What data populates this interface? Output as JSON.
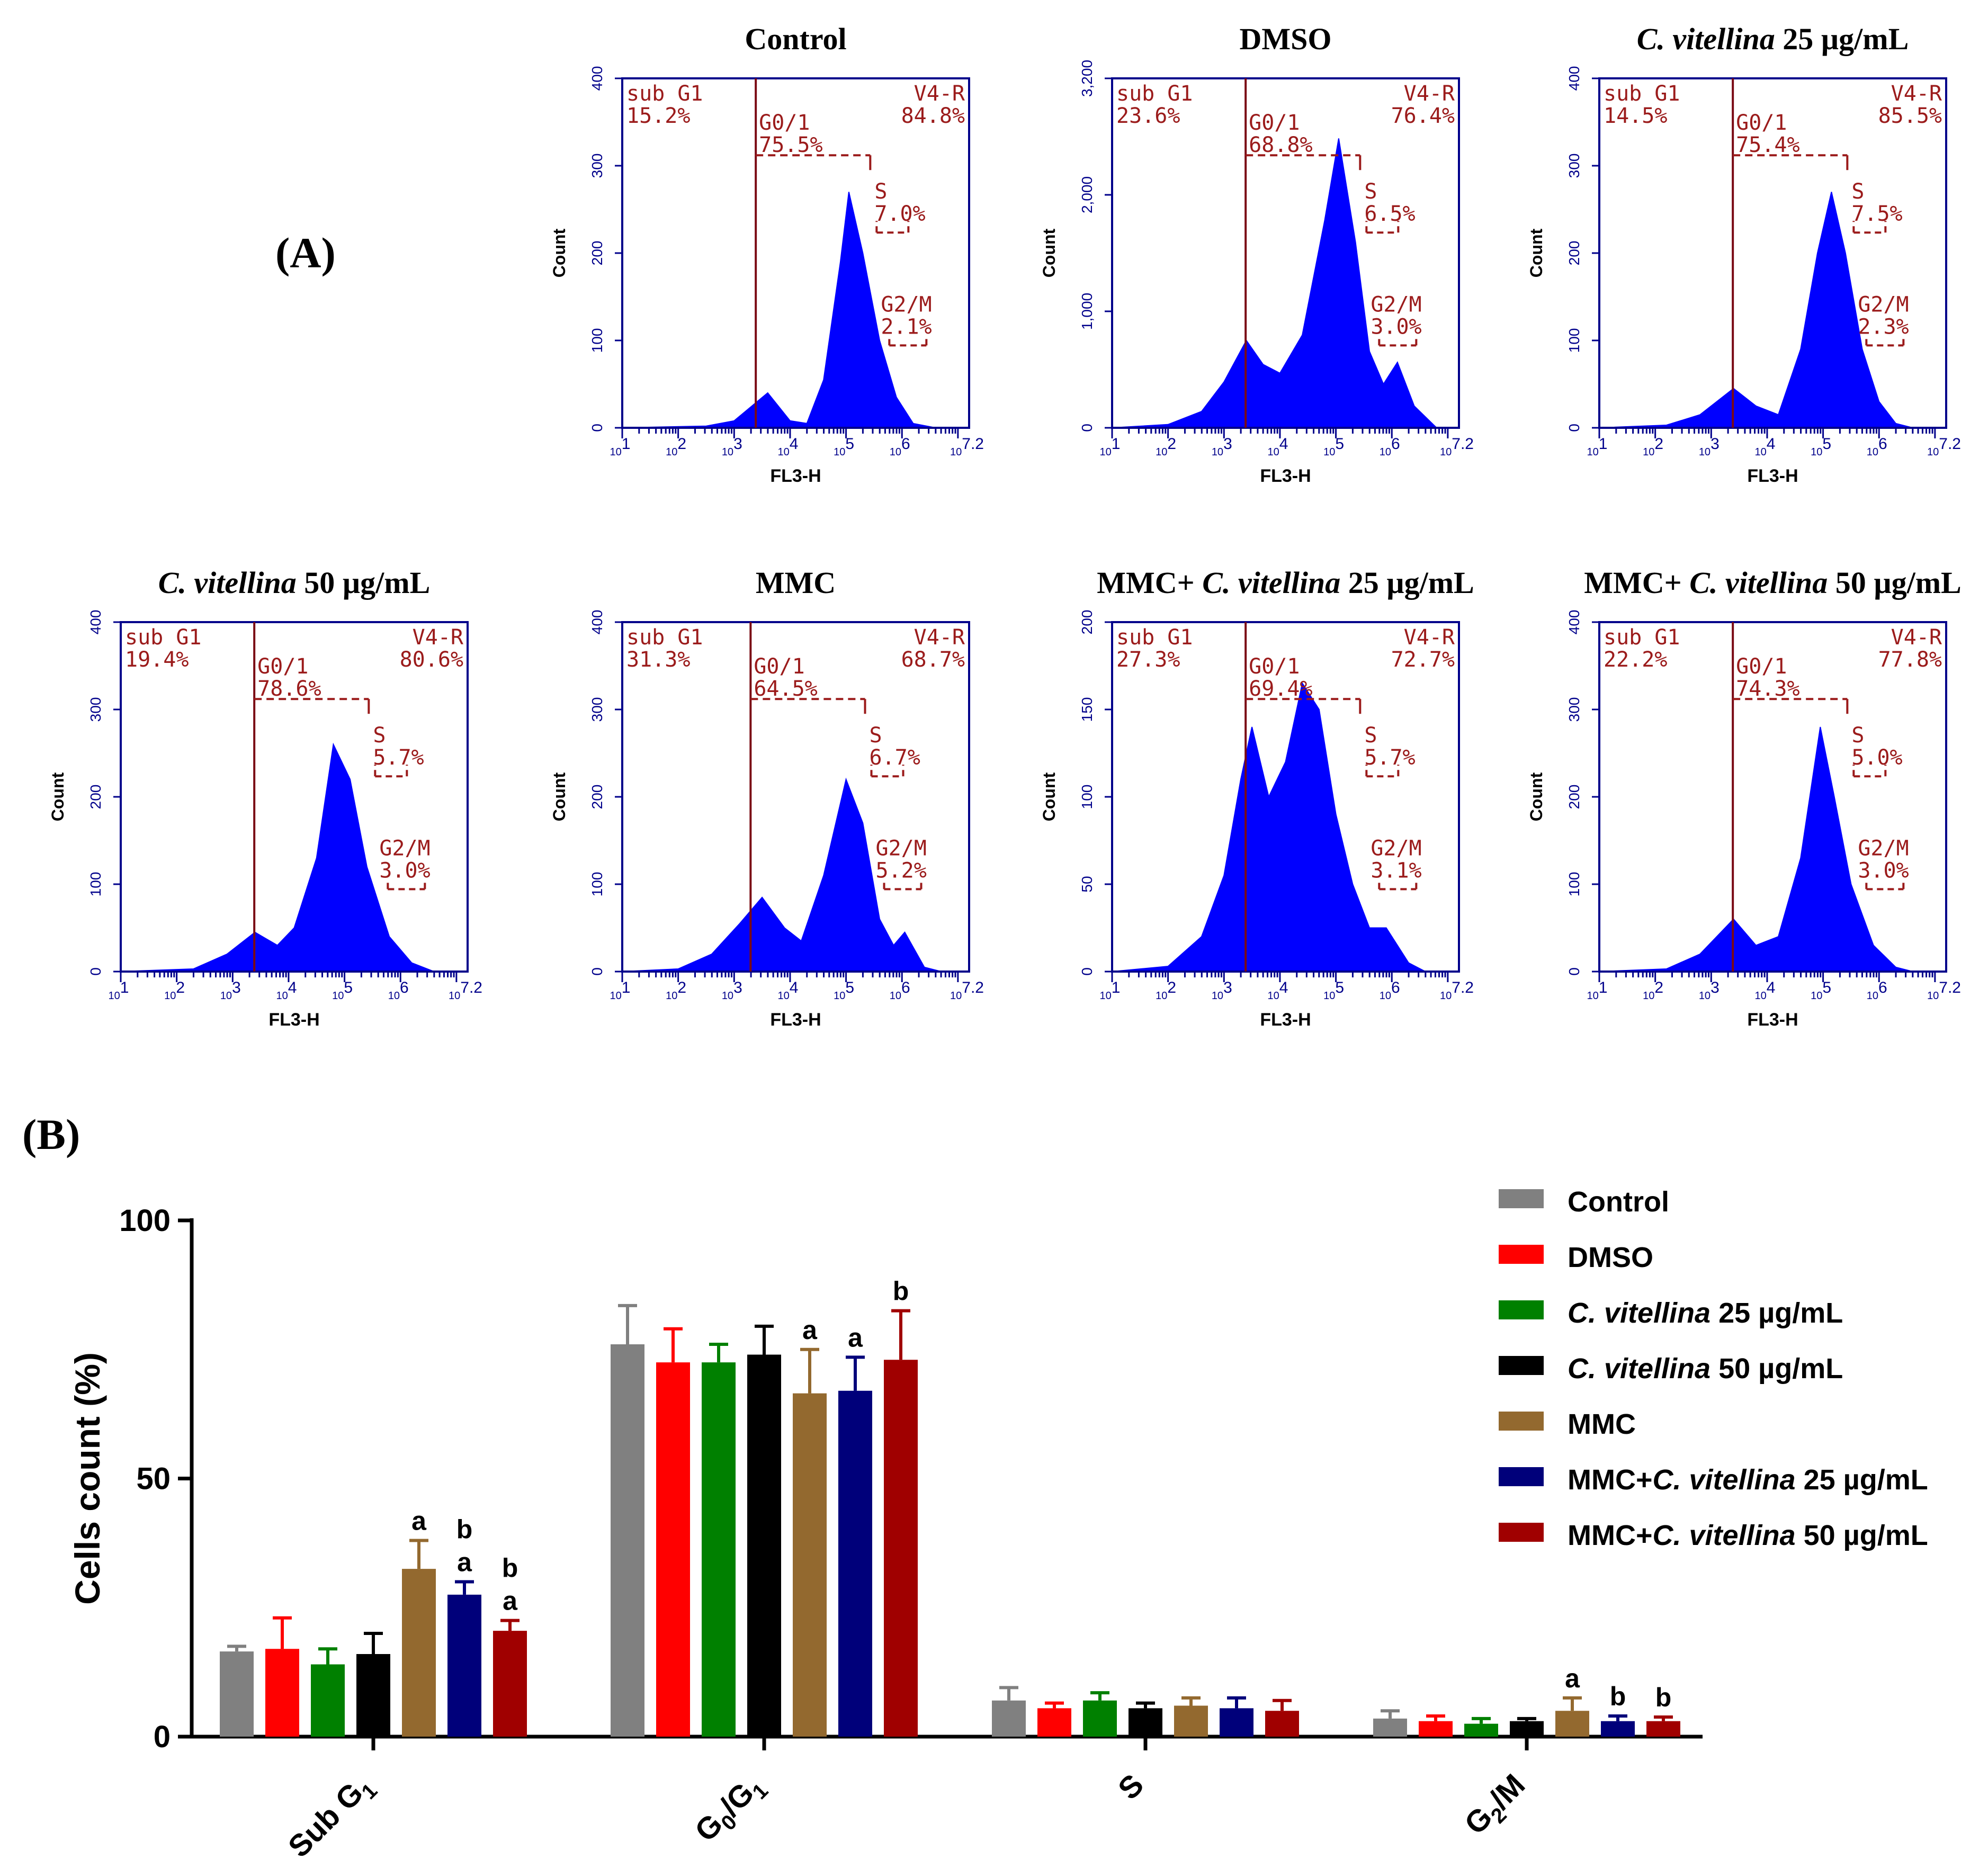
{
  "panels": {
    "a": "(A)",
    "b": "(B)"
  },
  "chart_data": [
    {
      "type": "histogram",
      "title": "Control",
      "ymax": 400,
      "yticks": [
        "0",
        "100",
        "200",
        "300",
        "400"
      ],
      "xlabel": "FL3-H",
      "ylabel": "Count",
      "xticks": [
        "10^1",
        "10^2",
        "10^3",
        "10^4",
        "10^5",
        "10^6",
        "10^7.2"
      ],
      "gates": {
        "sub_g1": {
          "label": "sub G1",
          "value": "15.2%"
        },
        "v4r": {
          "label": "V4-R",
          "value": "84.8%"
        },
        "g01": {
          "label": "G0/1",
          "value": "75.5%"
        },
        "s": {
          "label": "S",
          "value": "7.0%"
        },
        "g2m": {
          "label": "G2/M",
          "value": "2.1%"
        }
      },
      "histogram": [
        [
          1,
          0
        ],
        [
          2.5,
          2
        ],
        [
          3,
          8
        ],
        [
          3.6,
          40
        ],
        [
          4,
          8
        ],
        [
          4.3,
          5
        ],
        [
          4.6,
          55
        ],
        [
          4.9,
          190
        ],
        [
          5.05,
          270
        ],
        [
          5.3,
          200
        ],
        [
          5.6,
          100
        ],
        [
          5.9,
          35
        ],
        [
          6.2,
          5
        ],
        [
          6.6,
          0
        ]
      ]
    },
    {
      "type": "histogram",
      "title": "DMSO",
      "ymax": 3200,
      "yticks": [
        "0",
        "1,000",
        "2,000",
        "3,200"
      ],
      "xlabel": "FL3-H",
      "ylabel": "Count",
      "xticks": [
        "10^1",
        "10^2",
        "10^3",
        "10^4",
        "10^5",
        "10^6",
        "10^7.2"
      ],
      "gates": {
        "sub_g1": {
          "label": "sub G1",
          "value": "23.6%"
        },
        "v4r": {
          "label": "V4-R",
          "value": "76.4%"
        },
        "g01": {
          "label": "G0/1",
          "value": "68.8%"
        },
        "s": {
          "label": "S",
          "value": "6.5%"
        },
        "g2m": {
          "label": "G2/M",
          "value": "3.0%"
        }
      },
      "histogram": [
        [
          1,
          0
        ],
        [
          2,
          30
        ],
        [
          2.6,
          150
        ],
        [
          3,
          420
        ],
        [
          3.4,
          800
        ],
        [
          3.7,
          580
        ],
        [
          4,
          500
        ],
        [
          4.4,
          850
        ],
        [
          4.8,
          1900
        ],
        [
          5.05,
          2650
        ],
        [
          5.35,
          1700
        ],
        [
          5.6,
          700
        ],
        [
          5.85,
          400
        ],
        [
          6.1,
          600
        ],
        [
          6.4,
          200
        ],
        [
          6.8,
          0
        ]
      ]
    },
    {
      "type": "histogram",
      "title": "C. vitellina 25 µg/mL",
      "title_italic": "C. vitellina",
      "title_rest": " 25 µg/mL",
      "ymax": 400,
      "yticks": [
        "0",
        "100",
        "200",
        "300",
        "400"
      ],
      "xlabel": "FL3-H",
      "ylabel": "Count",
      "xticks": [
        "10^1",
        "10^2",
        "10^3",
        "10^4",
        "10^5",
        "10^6",
        "10^7.2"
      ],
      "gates": {
        "sub_g1": {
          "label": "sub G1",
          "value": "14.5%"
        },
        "v4r": {
          "label": "V4-R",
          "value": "85.5%"
        },
        "g01": {
          "label": "G0/1",
          "value": "75.4%"
        },
        "s": {
          "label": "S",
          "value": "7.5%"
        },
        "g2m": {
          "label": "G2/M",
          "value": "2.3%"
        }
      },
      "histogram": [
        [
          1,
          0
        ],
        [
          2.2,
          3
        ],
        [
          2.8,
          15
        ],
        [
          3.4,
          45
        ],
        [
          3.8,
          25
        ],
        [
          4.2,
          15
        ],
        [
          4.6,
          90
        ],
        [
          4.9,
          200
        ],
        [
          5.15,
          270
        ],
        [
          5.4,
          200
        ],
        [
          5.7,
          90
        ],
        [
          6,
          30
        ],
        [
          6.3,
          5
        ],
        [
          6.6,
          0
        ]
      ]
    },
    {
      "type": "histogram",
      "title": "C. vitellina 50 µg/mL",
      "title_italic": "C. vitellina",
      "title_rest": " 50 µg/mL",
      "ymax": 400,
      "yticks": [
        "0",
        "100",
        "200",
        "300",
        "400"
      ],
      "xlabel": "FL3-H",
      "ylabel": "Count",
      "xticks": [
        "10^1",
        "10^2",
        "10^3",
        "10^4",
        "10^5",
        "10^6",
        "10^7.2"
      ],
      "gates": {
        "sub_g1": {
          "label": "sub G1",
          "value": "19.4%"
        },
        "v4r": {
          "label": "V4-R",
          "value": "80.6%"
        },
        "g01": {
          "label": "G0/1",
          "value": "78.6%"
        },
        "s": {
          "label": "S",
          "value": "5.7%"
        },
        "g2m": {
          "label": "G2/M",
          "value": "3.0%"
        }
      },
      "histogram": [
        [
          1,
          0
        ],
        [
          2.3,
          3
        ],
        [
          2.9,
          20
        ],
        [
          3.4,
          45
        ],
        [
          3.8,
          30
        ],
        [
          4.1,
          50
        ],
        [
          4.5,
          130
        ],
        [
          4.8,
          260
        ],
        [
          5.1,
          220
        ],
        [
          5.4,
          120
        ],
        [
          5.8,
          40
        ],
        [
          6.2,
          10
        ],
        [
          6.6,
          0
        ]
      ]
    },
    {
      "type": "histogram",
      "title": "MMC",
      "ymax": 400,
      "yticks": [
        "0",
        "100",
        "200",
        "300",
        "400"
      ],
      "xlabel": "FL3-H",
      "ylabel": "Count",
      "xticks": [
        "10^1",
        "10^2",
        "10^3",
        "10^4",
        "10^5",
        "10^6",
        "10^7.2"
      ],
      "gates": {
        "sub_g1": {
          "label": "sub G1",
          "value": "31.3%"
        },
        "v4r": {
          "label": "V4-R",
          "value": "68.7%"
        },
        "g01": {
          "label": "G0/1",
          "value": "64.5%"
        },
        "s": {
          "label": "S",
          "value": "6.7%"
        },
        "g2m": {
          "label": "G2/M",
          "value": "5.2%"
        }
      },
      "histogram": [
        [
          1,
          0
        ],
        [
          2,
          3
        ],
        [
          2.6,
          20
        ],
        [
          3.1,
          55
        ],
        [
          3.5,
          85
        ],
        [
          3.9,
          50
        ],
        [
          4.2,
          35
        ],
        [
          4.6,
          110
        ],
        [
          5,
          220
        ],
        [
          5.3,
          170
        ],
        [
          5.6,
          60
        ],
        [
          5.85,
          30
        ],
        [
          6.05,
          45
        ],
        [
          6.4,
          5
        ],
        [
          6.7,
          0
        ]
      ]
    },
    {
      "type": "histogram",
      "title": "MMC+ C. vitellina 25 µg/mL",
      "title_pre": "MMC+ ",
      "title_italic": "C. vitellina",
      "title_rest": " 25 µg/mL",
      "ymax": 200,
      "yticks": [
        "0",
        "50",
        "100",
        "150",
        "200"
      ],
      "xlabel": "FL3-H",
      "ylabel": "Count",
      "xticks": [
        "10^1",
        "10^2",
        "10^3",
        "10^4",
        "10^5",
        "10^6",
        "10^7.2"
      ],
      "gates": {
        "sub_g1": {
          "label": "sub G1",
          "value": "27.3%"
        },
        "v4r": {
          "label": "V4-R",
          "value": "72.7%"
        },
        "g01": {
          "label": "G0/1",
          "value": "69.4%"
        },
        "s": {
          "label": "S",
          "value": "5.7%"
        },
        "g2m": {
          "label": "G2/M",
          "value": "3.1%"
        }
      },
      "histogram": [
        [
          1,
          0
        ],
        [
          2,
          3
        ],
        [
          2.6,
          20
        ],
        [
          3,
          55
        ],
        [
          3.3,
          110
        ],
        [
          3.5,
          140
        ],
        [
          3.8,
          100
        ],
        [
          4.1,
          120
        ],
        [
          4.4,
          165
        ],
        [
          4.7,
          150
        ],
        [
          5,
          90
        ],
        [
          5.3,
          50
        ],
        [
          5.6,
          25
        ],
        [
          5.9,
          25
        ],
        [
          6.3,
          5
        ],
        [
          6.6,
          0
        ]
      ]
    },
    {
      "type": "histogram",
      "title": "MMC+ C. vitellina 50 µg/mL",
      "title_pre": "MMC+ ",
      "title_italic": "C. vitellina",
      "title_rest": " 50 µg/mL",
      "ymax": 400,
      "yticks": [
        "0",
        "100",
        "200",
        "300",
        "400"
      ],
      "xlabel": "FL3-H",
      "ylabel": "Count",
      "xticks": [
        "10^1",
        "10^2",
        "10^3",
        "10^4",
        "10^5",
        "10^6",
        "10^7.2"
      ],
      "gates": {
        "sub_g1": {
          "label": "sub G1",
          "value": "22.2%"
        },
        "v4r": {
          "label": "V4-R",
          "value": "77.8%"
        },
        "g01": {
          "label": "G0/1",
          "value": "74.3%"
        },
        "s": {
          "label": "S",
          "value": "5.0%"
        },
        "g2m": {
          "label": "G2/M",
          "value": "3.0%"
        }
      },
      "histogram": [
        [
          1,
          0
        ],
        [
          2.2,
          3
        ],
        [
          2.8,
          20
        ],
        [
          3.4,
          60
        ],
        [
          3.8,
          30
        ],
        [
          4.2,
          40
        ],
        [
          4.6,
          130
        ],
        [
          4.95,
          280
        ],
        [
          5.2,
          200
        ],
        [
          5.5,
          100
        ],
        [
          5.9,
          30
        ],
        [
          6.3,
          5
        ],
        [
          6.6,
          0
        ]
      ]
    },
    {
      "type": "bar",
      "title": "",
      "ylabel": "Cells count (%)",
      "ylim": [
        0,
        100
      ],
      "yticks": [
        "0",
        "50",
        "100"
      ],
      "categories": [
        "Sub G1",
        "G0/G1",
        "S",
        "G2/M"
      ],
      "series": [
        {
          "name": "Control",
          "italic": "",
          "rest": "",
          "color": "#808080",
          "values": [
            16.5,
            76,
            7,
            3.5
          ],
          "errors": [
            1,
            7.5,
            2.5,
            1.5
          ],
          "letters": [
            "",
            "",
            "",
            ""
          ]
        },
        {
          "name": "DMSO",
          "italic": "",
          "rest": "",
          "color": "#ff0000",
          "values": [
            17,
            72.5,
            5.5,
            3
          ],
          "errors": [
            6,
            6.5,
            1,
            1
          ],
          "letters": [
            "",
            "",
            "",
            ""
          ]
        },
        {
          "name": "C. vitellina 25 µg/mL",
          "italic": "C. vitellina",
          "rest": " 25 µg/mL",
          "color": "#008000",
          "values": [
            14,
            72.5,
            7,
            2.5
          ],
          "errors": [
            3,
            3.5,
            1.5,
            1
          ],
          "letters": [
            "",
            "",
            "",
            ""
          ]
        },
        {
          "name": "C. vitellina 50 µg/mL",
          "italic": "C. vitellina",
          "rest": " 50 µg/mL",
          "color": "#000000",
          "values": [
            16,
            74,
            5.5,
            3
          ],
          "errors": [
            4,
            5.5,
            1,
            0.5
          ],
          "letters": [
            "",
            "",
            "",
            ""
          ]
        },
        {
          "name": "MMC",
          "italic": "",
          "rest": "",
          "color": "#93692f",
          "values": [
            32.5,
            66.5,
            6,
            5
          ],
          "errors": [
            5.5,
            8.5,
            1.5,
            2.5
          ],
          "letters": [
            "a",
            "a",
            "",
            "a"
          ]
        },
        {
          "name": "MMC+C. vitellina 25 µg/mL",
          "italic": "C. vitellina",
          "rest": " 25 µg/mL",
          "color": "#00007a",
          "values": [
            27.5,
            67,
            5.5,
            3
          ],
          "errors": [
            2.5,
            6.5,
            2,
            1
          ],
          "letters": [
            "b|a",
            "a",
            "",
            "b"
          ]
        },
        {
          "name": "MMC+C. vitellina 50 µg/mL",
          "italic": "C. vitellina",
          "rest": " 50 µg/mL",
          "color": "#a00000",
          "values": [
            20.5,
            73,
            5,
            3
          ],
          "errors": [
            2,
            9.5,
            2,
            0.8
          ],
          "letters": [
            "b|a",
            "b",
            "",
            "b"
          ]
        }
      ]
    }
  ]
}
